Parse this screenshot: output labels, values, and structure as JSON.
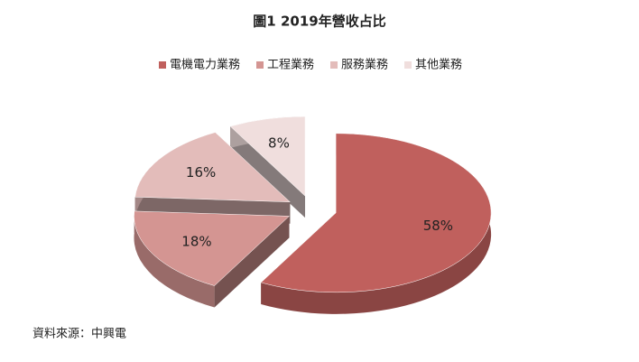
{
  "chart_data": {
    "type": "pie",
    "title": "圖1 2019年營收占比",
    "categories": [
      "電機電力業務",
      "工程業務",
      "服務業務",
      "其他業務"
    ],
    "values": [
      58,
      18,
      16,
      8
    ],
    "value_labels": [
      "58%",
      "18%",
      "16%",
      "8%"
    ],
    "colors": [
      "#c0605d",
      "#d49592",
      "#e3bcba",
      "#f0dedd"
    ],
    "legend": "top"
  },
  "source": "資料來源：中興電"
}
